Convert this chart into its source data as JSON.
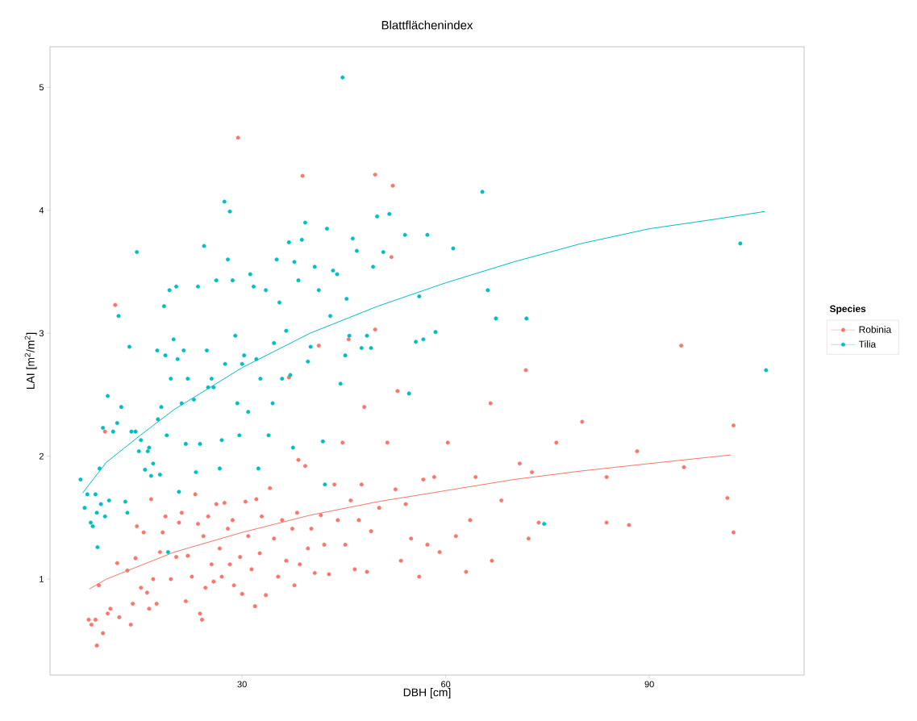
{
  "chart_data": {
    "type": "scatter",
    "title": "Blattflächenindex",
    "xlabel": "DBH [cm]",
    "ylabel": "LAI [m$^{2}$/m$^{2}$]",
    "legend_title": "Species",
    "legend": "right",
    "xlim": [
      1.7,
      112.8
    ],
    "ylim": [
      0.22,
      5.33
    ],
    "xticks": [
      30,
      60,
      90
    ],
    "yticks": [
      1,
      2,
      3,
      4,
      5
    ],
    "series": [
      {
        "name": "Robinia",
        "marker": "circle",
        "color": "#f8766d",
        "x": [
          7.4,
          7.8,
          8.4,
          8.6,
          8.9,
          9.5,
          9.8,
          10.2,
          10.6,
          11.3,
          11.6,
          11.9,
          13.1,
          13.6,
          13.9,
          14.3,
          14.5,
          15.1,
          15.5,
          16.0,
          16.3,
          16.6,
          16.9,
          17.4,
          17.9,
          18.3,
          18.7,
          19.5,
          20.3,
          20.7,
          21.1,
          21.7,
          22.0,
          22.6,
          23.1,
          23.5,
          23.8,
          24.1,
          24.3,
          24.6,
          25.0,
          25.5,
          25.8,
          26.2,
          26.7,
          27.0,
          27.4,
          27.9,
          28.2,
          28.6,
          28.8,
          29.4,
          29.7,
          30.0,
          30.5,
          30.9,
          31.4,
          31.9,
          32.1,
          32.6,
          32.9,
          33.5,
          34.1,
          34.7,
          35.3,
          35.9,
          36.5,
          36.9,
          37.4,
          37.7,
          38.1,
          38.3,
          38.5,
          38.9,
          39.3,
          39.7,
          40.2,
          40.7,
          41.3,
          41.6,
          42.1,
          42.8,
          43.6,
          44.1,
          44.8,
          45.2,
          45.7,
          46.0,
          46.6,
          47.2,
          47.6,
          48.0,
          48.4,
          49.0,
          49.6,
          49.6,
          50.2,
          51.4,
          52.0,
          52.2,
          52.6,
          52.9,
          53.4,
          54.1,
          54.9,
          56.1,
          56.7,
          57.3,
          58.3,
          59.1,
          60.3,
          61.5,
          63.0,
          63.6,
          64.4,
          66.6,
          66.8,
          68.2,
          70.9,
          71.8,
          72.2,
          72.7,
          73.7,
          76.3,
          80.1,
          83.7,
          83.7,
          87.0,
          88.2,
          94.7,
          95.1,
          101.5,
          102.4,
          102.4
        ],
        "values": [
          0.67,
          0.63,
          0.67,
          0.46,
          0.95,
          0.56,
          2.2,
          0.72,
          0.76,
          3.23,
          1.13,
          0.69,
          1.07,
          0.63,
          0.8,
          1.17,
          1.43,
          0.93,
          1.38,
          0.89,
          0.76,
          1.65,
          1.0,
          0.8,
          1.22,
          1.38,
          1.51,
          1.0,
          1.18,
          1.46,
          1.54,
          0.82,
          1.19,
          1.02,
          1.69,
          1.45,
          0.72,
          0.67,
          1.35,
          0.93,
          1.51,
          1.12,
          0.98,
          1.61,
          1.25,
          1.02,
          1.62,
          1.41,
          1.12,
          1.48,
          0.95,
          4.59,
          1.18,
          0.88,
          1.63,
          1.35,
          1.08,
          0.78,
          1.65,
          1.21,
          1.51,
          0.87,
          1.74,
          1.33,
          1.02,
          1.48,
          1.15,
          2.64,
          1.41,
          0.95,
          1.54,
          1.97,
          1.12,
          4.28,
          1.92,
          1.25,
          1.41,
          1.05,
          2.9,
          1.52,
          1.28,
          1.04,
          1.77,
          1.48,
          2.11,
          1.28,
          2.95,
          1.64,
          1.08,
          1.48,
          1.77,
          2.4,
          1.06,
          1.39,
          4.29,
          3.03,
          1.58,
          2.11,
          3.62,
          4.2,
          1.73,
          2.53,
          1.15,
          1.61,
          1.33,
          1.02,
          1.81,
          1.28,
          1.83,
          1.22,
          2.11,
          1.35,
          1.06,
          1.48,
          1.83,
          2.43,
          1.15,
          1.64,
          1.94,
          2.7,
          1.33,
          1.87,
          1.46,
          2.11,
          2.28,
          1.83,
          1.46,
          1.44,
          2.04,
          2.9,
          1.91,
          1.66,
          2.25,
          1.38
        ]
      },
      {
        "name": "Tilia",
        "marker": "circle",
        "color": "#00bfc4",
        "x": [
          6.2,
          6.8,
          7.2,
          7.7,
          8.0,
          8.4,
          8.6,
          8.7,
          9.0,
          9.2,
          9.5,
          9.8,
          10.2,
          10.4,
          11.0,
          11.6,
          11.8,
          12.2,
          12.8,
          13.1,
          13.4,
          13.7,
          14.3,
          14.5,
          14.8,
          15.1,
          15.7,
          16.1,
          16.3,
          16.6,
          16.9,
          17.5,
          17.6,
          17.9,
          18.1,
          18.5,
          18.7,
          18.9,
          19.1,
          19.3,
          19.5,
          19.9,
          20.3,
          20.5,
          20.7,
          21.1,
          21.4,
          21.7,
          22.0,
          22.9,
          23.2,
          23.5,
          23.8,
          24.4,
          24.8,
          25.0,
          25.5,
          25.8,
          26.2,
          26.7,
          27.0,
          27.4,
          27.5,
          27.9,
          28.2,
          28.6,
          29.0,
          29.3,
          29.6,
          30.0,
          30.3,
          30.9,
          31.2,
          31.7,
          32.1,
          32.4,
          32.7,
          33.5,
          33.9,
          34.5,
          34.7,
          35.1,
          35.5,
          35.9,
          36.5,
          36.9,
          37.1,
          37.5,
          37.7,
          38.3,
          38.8,
          39.3,
          39.7,
          40.1,
          40.7,
          41.3,
          41.9,
          42.2,
          42.5,
          43.0,
          43.4,
          44.0,
          44.5,
          44.8,
          45.2,
          45.4,
          45.8,
          46.3,
          46.9,
          47.6,
          48.4,
          49.0,
          49.3,
          49.9,
          50.8,
          51.7,
          54.0,
          54.6,
          55.6,
          56.1,
          56.7,
          57.3,
          58.5,
          61.1,
          65.4,
          66.2,
          67.4,
          71.9,
          74.5,
          103.4,
          107.2
        ],
        "values": [
          1.81,
          1.58,
          1.69,
          1.46,
          1.43,
          1.69,
          1.54,
          1.26,
          1.9,
          1.61,
          2.23,
          1.51,
          2.49,
          1.64,
          2.2,
          2.27,
          3.14,
          2.4,
          1.63,
          1.54,
          2.89,
          2.2,
          2.2,
          3.66,
          2.04,
          2.13,
          1.89,
          2.04,
          2.07,
          1.84,
          1.94,
          2.86,
          2.3,
          1.85,
          2.4,
          3.22,
          2.82,
          2.17,
          1.22,
          3.35,
          2.63,
          2.95,
          3.38,
          2.79,
          1.71,
          2.43,
          2.86,
          2.1,
          2.63,
          2.46,
          1.87,
          3.38,
          2.1,
          3.71,
          2.86,
          2.56,
          2.63,
          2.56,
          3.43,
          1.9,
          2.13,
          4.07,
          2.75,
          3.6,
          3.99,
          3.43,
          2.98,
          2.43,
          2.17,
          2.75,
          2.82,
          2.36,
          3.48,
          3.38,
          2.79,
          1.9,
          2.63,
          3.35,
          2.17,
          2.43,
          2.92,
          3.6,
          3.25,
          2.63,
          3.02,
          3.74,
          2.66,
          2.07,
          3.58,
          3.43,
          3.76,
          3.9,
          2.77,
          2.89,
          3.54,
          3.35,
          2.12,
          1.77,
          3.85,
          3.14,
          3.51,
          3.48,
          2.59,
          5.08,
          2.82,
          3.28,
          2.98,
          3.77,
          3.67,
          2.88,
          2.98,
          2.88,
          3.54,
          3.95,
          3.66,
          3.97,
          3.8,
          2.51,
          2.93,
          3.3,
          2.95,
          3.8,
          3.01,
          3.69,
          4.15,
          3.35,
          3.12,
          3.12,
          1.45,
          3.73,
          2.7
        ]
      },
      {
        "type": "line",
        "marker": "none",
        "color": "#f8766d",
        "x": [
          7.5,
          10,
          20,
          30,
          40,
          50,
          60,
          70,
          80,
          90,
          102
        ],
        "values": [
          0.92,
          1.0,
          1.22,
          1.38,
          1.52,
          1.63,
          1.72,
          1.81,
          1.88,
          1.94,
          2.01
        ]
      },
      {
        "type": "line",
        "marker": "none",
        "color": "#00bfc4",
        "x": [
          6.5,
          10,
          15,
          20,
          30,
          40,
          50,
          60,
          70,
          80,
          90,
          100,
          107
        ],
        "values": [
          1.7,
          1.95,
          2.17,
          2.38,
          2.72,
          3.0,
          3.22,
          3.41,
          3.58,
          3.73,
          3.85,
          3.93,
          3.99
        ]
      }
    ]
  }
}
